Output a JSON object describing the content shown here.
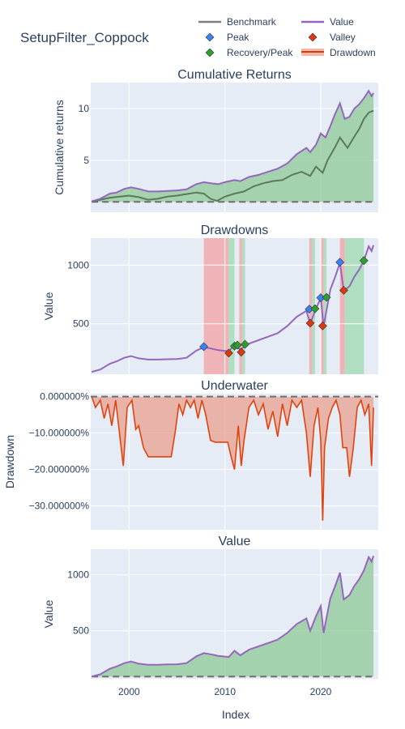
{
  "title": "SetupFilter_Coppock",
  "legend": [
    {
      "name": "Benchmark",
      "color": "#7f7f7f",
      "symbol": "line"
    },
    {
      "name": "Value",
      "color": "#9467bd",
      "symbol": "line"
    },
    {
      "name": "Peak",
      "color": "#3b82f6",
      "symbol": "diamond"
    },
    {
      "name": "Valley",
      "color": "#dc3912",
      "symbol": "diamond"
    },
    {
      "name": "Recovery/Peak",
      "color": "#2ca02c",
      "symbol": "diamond"
    },
    {
      "name": "Drawdown",
      "color": "#dc3912",
      "symbol": "band"
    }
  ],
  "colors": {
    "plot_bg": "#e5ecf6",
    "grid": "#ffffff",
    "value": "#9467bd",
    "benchmark": "#5b7a5b",
    "fill_green": "#8fca96",
    "drawdown_band": "#f2a9ab",
    "recovery_band": "#a6dcb6",
    "underwater": "#e0440e",
    "underwater_fill": "#e9a99a",
    "baseline": "#6e6e6e",
    "peak": "#3b82f6",
    "valley": "#dc3912",
    "recovery": "#2ca02c"
  },
  "xlabel": "Index",
  "chart_data": [
    {
      "type": "line",
      "subtitle": "Cumulative Returns",
      "ylabel": "Cumulative returns",
      "xlim": [
        1996.0,
        2026.0
      ],
      "ylim": [
        0.0,
        12.5
      ],
      "xticks": [
        {
          "v": 2000,
          "label": ""
        },
        {
          "v": 2010,
          "label": ""
        },
        {
          "v": 2020,
          "label": ""
        }
      ],
      "yticks": [
        {
          "v": 5,
          "label": "5"
        },
        {
          "v": 10,
          "label": "10"
        }
      ],
      "series": [
        {
          "name": "Value",
          "x": [
            1996.1,
            1997.0,
            1998.0,
            1998.7,
            1999.5,
            2000.2,
            2001.0,
            2002.0,
            2003.0,
            2004.0,
            2005.0,
            2006.0,
            2007.0,
            2007.8,
            2008.5,
            2009.3,
            2010.0,
            2011.0,
            2011.6,
            2012.5,
            2013.5,
            2014.5,
            2015.5,
            2016.5,
            2017.5,
            2018.5,
            2018.9,
            2019.5,
            2020.0,
            2020.5,
            2021.0,
            2021.5,
            2022.0,
            2022.5,
            2023.0,
            2023.5,
            2024.0,
            2024.5,
            2025.0,
            2025.3,
            2025.5
          ],
          "y": [
            1.05,
            1.3,
            1.8,
            1.9,
            2.25,
            2.4,
            2.25,
            2.0,
            2.0,
            2.05,
            2.1,
            2.2,
            2.7,
            2.9,
            2.8,
            2.7,
            2.9,
            3.1,
            3.0,
            3.4,
            3.6,
            3.9,
            4.2,
            4.7,
            5.6,
            6.2,
            5.8,
            6.5,
            7.6,
            7.2,
            8.3,
            9.5,
            10.5,
            9.0,
            9.2,
            10.0,
            10.4,
            11.0,
            11.7,
            11.2,
            11.5
          ]
        },
        {
          "name": "Benchmark",
          "x": [
            1996.1,
            1997.0,
            1998.0,
            1999.0,
            2000.0,
            2001.0,
            2002.0,
            2003.0,
            2004.0,
            2005.0,
            2006.0,
            2007.0,
            2007.8,
            2008.5,
            2009.2,
            2010.0,
            2011.0,
            2012.0,
            2013.0,
            2014.0,
            2015.0,
            2016.0,
            2017.0,
            2018.0,
            2018.9,
            2019.5,
            2020.2,
            2020.7,
            2021.5,
            2022.0,
            2022.8,
            2023.5,
            2024.0,
            2024.5,
            2025.0,
            2025.5
          ],
          "y": [
            1.0,
            1.2,
            1.4,
            1.5,
            1.6,
            1.45,
            1.2,
            1.3,
            1.5,
            1.6,
            1.75,
            1.9,
            1.8,
            1.3,
            1.1,
            1.5,
            1.8,
            2.0,
            2.5,
            2.8,
            3.0,
            3.1,
            3.6,
            3.9,
            3.5,
            4.4,
            3.8,
            5.0,
            6.3,
            7.2,
            6.2,
            7.3,
            8.0,
            9.0,
            9.6,
            9.8
          ]
        }
      ]
    },
    {
      "type": "line",
      "subtitle": "Drawdowns",
      "ylabel": "Value",
      "xlim": [
        1996.0,
        2026.0
      ],
      "ylim": [
        70,
        1230
      ],
      "xticks": [
        {
          "v": 2000,
          "label": ""
        },
        {
          "v": 2010,
          "label": ""
        },
        {
          "v": 2020,
          "label": ""
        }
      ],
      "yticks": [
        {
          "v": 500,
          "label": "500"
        },
        {
          "v": 1000,
          "label": "1000"
        }
      ],
      "drawdown_bands": [
        [
          2007.8,
          2010.4
        ],
        [
          2011.5,
          2011.8
        ],
        [
          2018.8,
          2019.1
        ],
        [
          2020.0,
          2020.3
        ],
        [
          2022.0,
          2022.5
        ]
      ],
      "recovery_bands": [
        [
          2010.4,
          2011.0
        ],
        [
          2011.8,
          2012.1
        ],
        [
          2019.1,
          2019.4
        ],
        [
          2020.3,
          2020.6
        ],
        [
          2022.5,
          2024.5
        ]
      ],
      "series": [
        {
          "name": "Value",
          "x": [
            1996.1,
            1997.0,
            1998.0,
            1998.7,
            1999.5,
            2000.2,
            2001.0,
            2002.0,
            2003.0,
            2004.0,
            2005.0,
            2006.0,
            2007.0,
            2007.8,
            2008.5,
            2009.3,
            2010.4,
            2011.0,
            2011.6,
            2012.5,
            2013.5,
            2014.5,
            2015.5,
            2016.5,
            2017.5,
            2018.5,
            2018.9,
            2019.5,
            2020.0,
            2020.3,
            2021.0,
            2021.5,
            2022.0,
            2022.4,
            2023.0,
            2023.5,
            2024.0,
            2024.5,
            2025.0,
            2025.3,
            2025.5
          ],
          "y": [
            90,
            110,
            160,
            180,
            210,
            225,
            205,
            195,
            195,
            198,
            200,
            210,
            270,
            300,
            290,
            275,
            265,
            320,
            280,
            330,
            360,
            390,
            420,
            480,
            560,
            610,
            500,
            630,
            720,
            480,
            790,
            900,
            1020,
            780,
            820,
            900,
            960,
            1040,
            1160,
            1120,
            1170
          ]
        }
      ],
      "peaks": [
        {
          "x": 2007.8,
          "y": 305
        },
        {
          "x": 2018.8,
          "y": 625
        },
        {
          "x": 2020.0,
          "y": 722
        },
        {
          "x": 2022.0,
          "y": 1025
        }
      ],
      "valleys": [
        {
          "x": 2010.4,
          "y": 250
        },
        {
          "x": 2011.7,
          "y": 258
        },
        {
          "x": 2018.9,
          "y": 505
        },
        {
          "x": 2020.2,
          "y": 482
        },
        {
          "x": 2022.4,
          "y": 785
        }
      ],
      "recoveries": [
        {
          "x": 2011.0,
          "y": 310
        },
        {
          "x": 2011.3,
          "y": 318
        },
        {
          "x": 2012.1,
          "y": 325
        },
        {
          "x": 2019.4,
          "y": 628
        },
        {
          "x": 2020.6,
          "y": 725
        },
        {
          "x": 2024.5,
          "y": 1038
        }
      ]
    },
    {
      "type": "area",
      "subtitle": "Underwater",
      "ylabel": "Drawdown",
      "xlim": [
        1996.0,
        2026.0
      ],
      "ylim": [
        -36.5,
        0.8
      ],
      "xticks": [
        {
          "v": 2000,
          "label": ""
        },
        {
          "v": 2010,
          "label": ""
        },
        {
          "v": 2020,
          "label": ""
        }
      ],
      "yticks": [
        {
          "v": 0,
          "label": "0.000000%"
        },
        {
          "v": -10,
          "label": "−10.000000%"
        },
        {
          "v": -20,
          "label": "−20.000000%"
        },
        {
          "v": -30,
          "label": "−30.000000%"
        }
      ],
      "series": [
        {
          "name": "Drawdown",
          "x": [
            1996.1,
            1996.5,
            1997.0,
            1997.4,
            1997.8,
            1998.2,
            1998.6,
            1999.0,
            1999.4,
            1999.8,
            2000.3,
            2000.7,
            2001.0,
            2001.5,
            2002.0,
            2002.5,
            2003.0,
            2003.5,
            2004.0,
            2004.4,
            2004.8,
            2005.2,
            2005.6,
            2006.0,
            2006.4,
            2006.8,
            2007.2,
            2007.6,
            2008.0,
            2008.5,
            2009.0,
            2009.5,
            2010.0,
            2010.3,
            2010.6,
            2011.0,
            2011.4,
            2011.7,
            2012.0,
            2012.5,
            2013.0,
            2013.5,
            2014.0,
            2014.5,
            2015.0,
            2015.5,
            2016.0,
            2016.5,
            2017.0,
            2017.5,
            2018.0,
            2018.5,
            2018.9,
            2019.3,
            2019.7,
            2020.0,
            2020.2,
            2020.4,
            2020.8,
            2021.2,
            2021.6,
            2022.0,
            2022.3,
            2022.7,
            2023.0,
            2023.4,
            2023.8,
            2024.2,
            2024.6,
            2025.0,
            2025.3,
            2025.5
          ],
          "y": [
            0,
            -3,
            -1,
            -6,
            -2,
            -8,
            -1,
            -10,
            -19,
            -3,
            -1,
            -9,
            -8,
            -14,
            -16.5,
            -16.5,
            -16.5,
            -16.5,
            -16.5,
            -16.5,
            -10,
            -2,
            -5,
            -1,
            -3,
            -1,
            -6,
            -1,
            -5,
            -12,
            -12.5,
            -12.5,
            -12.5,
            -12.5,
            -16,
            -20,
            -8,
            -19,
            -12,
            -3,
            -1,
            -5,
            -2,
            -9,
            -4,
            -11,
            -2,
            -8,
            -1,
            -3,
            -1,
            -10,
            -22,
            -8,
            -3,
            -12,
            -34,
            -14,
            -6,
            -3,
            -1,
            -5,
            -14,
            -14,
            -22,
            -14,
            -3,
            -1,
            -5,
            -2,
            -19,
            -3
          ]
        }
      ]
    },
    {
      "type": "area",
      "subtitle": "Value",
      "ylabel": "Value",
      "xlim": [
        1996.0,
        2026.0
      ],
      "ylim": [
        70,
        1230
      ],
      "xticks": [
        {
          "v": 2000,
          "label": "2000"
        },
        {
          "v": 2010,
          "label": "2010"
        },
        {
          "v": 2020,
          "label": "2020"
        }
      ],
      "yticks": [
        {
          "v": 500,
          "label": "500"
        },
        {
          "v": 1000,
          "label": "1000"
        }
      ],
      "series": [
        {
          "name": "Value",
          "x": [
            1996.1,
            1997.0,
            1998.0,
            1998.7,
            1999.5,
            2000.2,
            2001.0,
            2002.0,
            2003.0,
            2004.0,
            2005.0,
            2006.0,
            2007.0,
            2007.8,
            2008.5,
            2009.3,
            2010.4,
            2011.0,
            2011.6,
            2012.5,
            2013.5,
            2014.5,
            2015.5,
            2016.5,
            2017.5,
            2018.5,
            2018.9,
            2019.5,
            2020.0,
            2020.3,
            2021.0,
            2021.5,
            2022.0,
            2022.4,
            2023.0,
            2023.5,
            2024.0,
            2024.5,
            2025.0,
            2025.3,
            2025.5
          ],
          "y": [
            90,
            110,
            160,
            180,
            210,
            225,
            205,
            195,
            195,
            198,
            200,
            210,
            270,
            300,
            290,
            275,
            265,
            320,
            280,
            330,
            360,
            390,
            420,
            480,
            560,
            610,
            500,
            630,
            720,
            480,
            790,
            900,
            1020,
            780,
            820,
            900,
            960,
            1040,
            1160,
            1120,
            1170
          ]
        }
      ]
    }
  ]
}
